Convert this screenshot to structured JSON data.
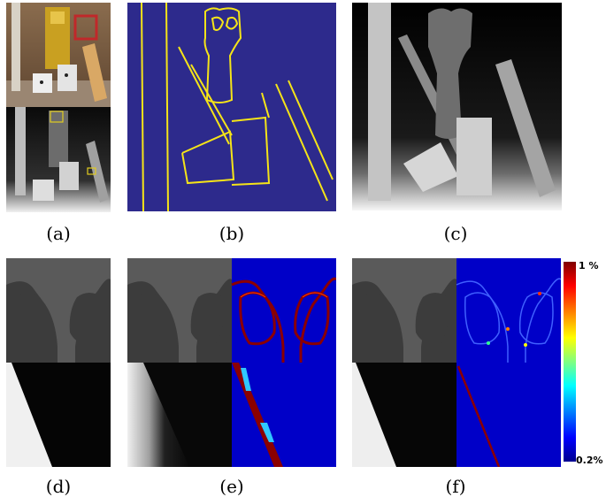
{
  "captions": {
    "a": "(a)",
    "b": "(b)",
    "c": "(c)",
    "d": "(d)",
    "e": "(e)",
    "f": "(f)"
  },
  "colorbar": {
    "max_label": "1 %",
    "min_label": "0.2%",
    "colors": [
      "#7f0000",
      "#ff0000",
      "#ff8000",
      "#ffff00",
      "#80ff80",
      "#00ffff",
      "#0080ff",
      "#0000ff",
      "#00008f"
    ]
  },
  "colors": {
    "edge_bg": "#2d2a8c",
    "edge_line": "#f5e418",
    "error_bg": "#0000c8",
    "error_line": "#8b0000"
  }
}
